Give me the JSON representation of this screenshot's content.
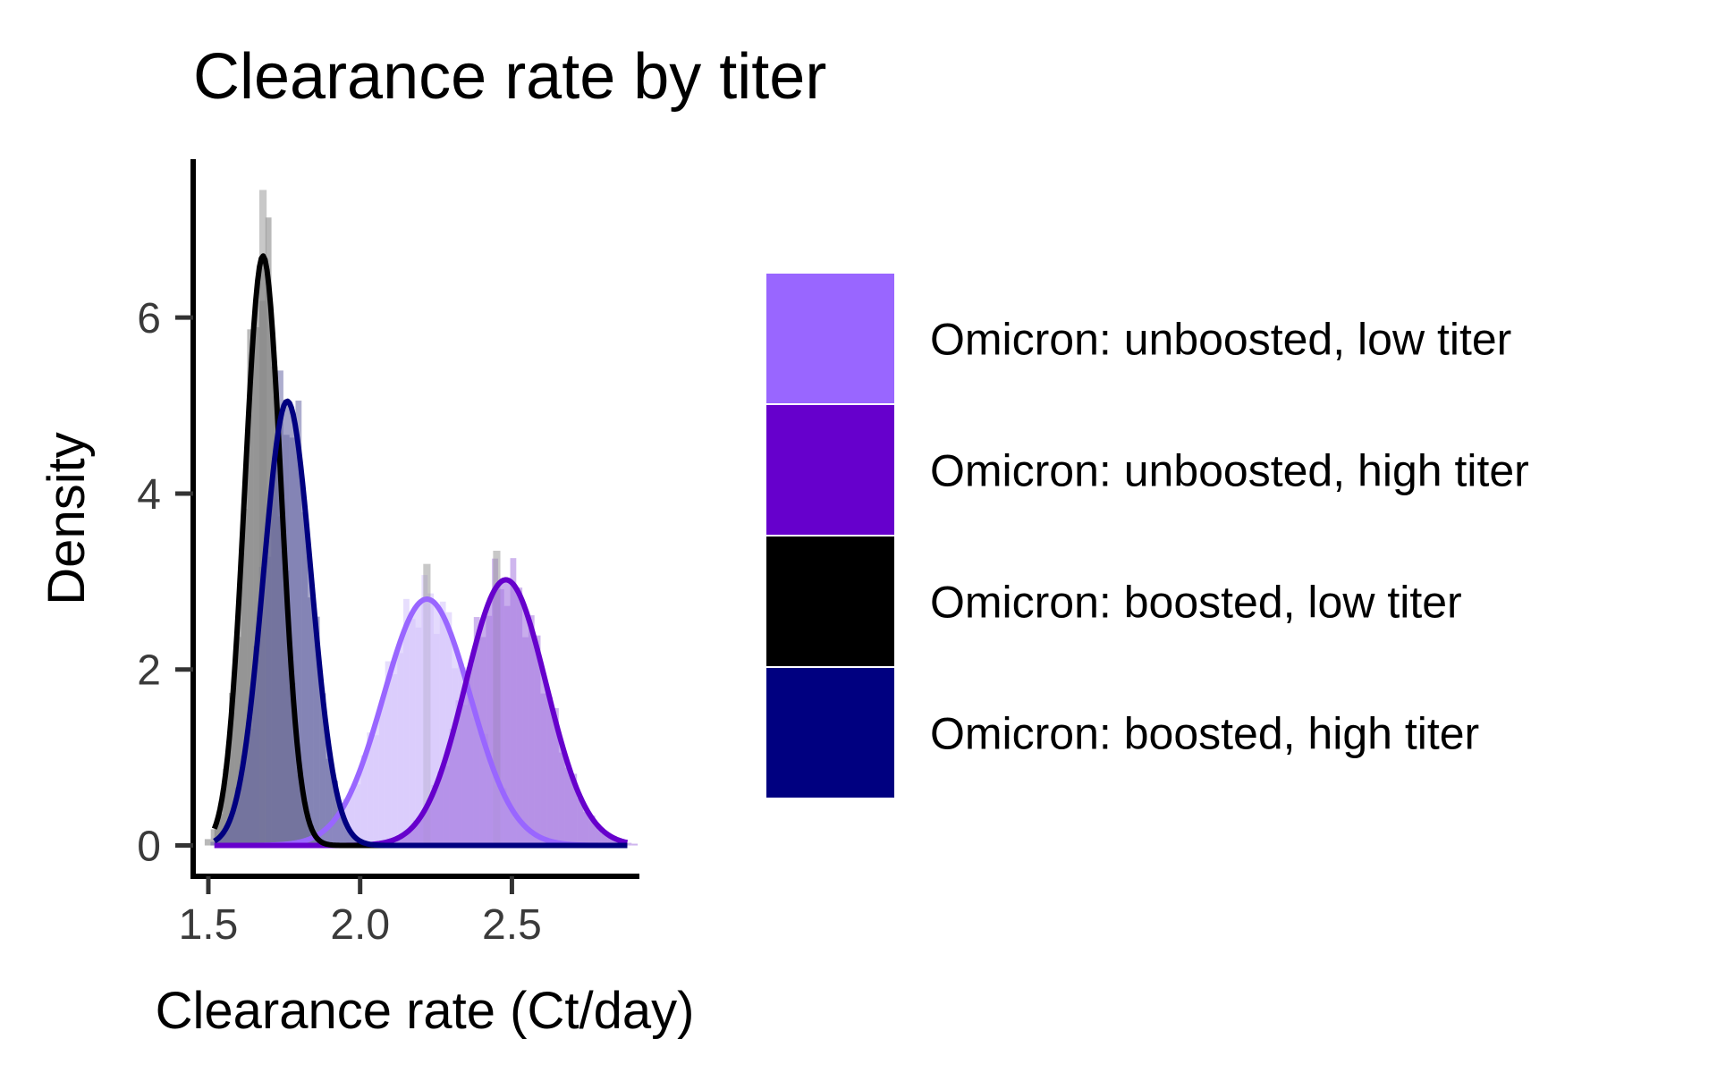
{
  "chart_data": {
    "type": "area",
    "title": "Clearance rate by titer",
    "xlabel": "Clearance rate (Ct/day)",
    "ylabel": "Density",
    "xlim": [
      1.45,
      2.92
    ],
    "ylim": [
      -0.35,
      7.8
    ],
    "x_ticks": [
      {
        "value": 1.5,
        "label": "1.5"
      },
      {
        "value": 2.0,
        "label": "2.0"
      },
      {
        "value": 2.5,
        "label": "2.5"
      }
    ],
    "y_ticks": [
      {
        "value": 0,
        "label": "0"
      },
      {
        "value": 2,
        "label": "2"
      },
      {
        "value": 4,
        "label": "4"
      },
      {
        "value": 6,
        "label": "6"
      }
    ],
    "x_range": [
      1.52,
      2.88
    ],
    "grid": false,
    "legend_position": "right",
    "series": [
      {
        "name": "Omicron: unboosted, low titer",
        "mean": 2.22,
        "sd": 0.143,
        "peak": 2.8,
        "line_color": "#9966ff",
        "fill_color": "#d4c3fb"
      },
      {
        "name": "Omicron: unboosted, high titer",
        "mean": 2.48,
        "sd": 0.133,
        "peak": 3.02,
        "line_color": "#6600cc",
        "fill_color": "#a77ae0"
      },
      {
        "name": "Omicron: boosted, low titer",
        "mean": 1.68,
        "sd": 0.06,
        "peak": 6.7,
        "line_color": "#000000",
        "fill_color": "#7f7f7f"
      },
      {
        "name": "Omicron: boosted, high titer",
        "mean": 1.76,
        "sd": 0.079,
        "peak": 5.05,
        "line_color": "#000080",
        "fill_color": "#6a6aa6"
      }
    ],
    "histogram_peaks": [
      {
        "x": 1.68,
        "y": 7.45
      },
      {
        "x": 2.22,
        "y": 3.2
      },
      {
        "x": 2.45,
        "y": 3.35
      }
    ]
  }
}
